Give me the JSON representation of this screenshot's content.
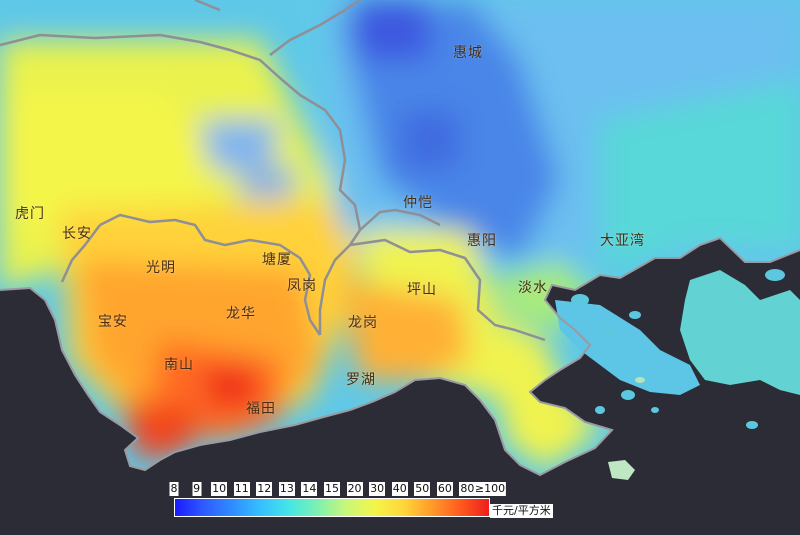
{
  "places": {
    "huicheng": "惠城",
    "humen": "虎门",
    "changan": "长安",
    "zhongkai": "仲恺",
    "huiyang": "惠阳",
    "dayawan": "大亚湾",
    "guangming": "光明",
    "tangxia": "塘厦",
    "fenggang": "凤岗",
    "pingshan": "坪山",
    "danshui": "淡水",
    "baoan": "宝安",
    "longhua": "龙华",
    "longgang": "龙岗",
    "nanshan": "南山",
    "luohu": "罗湖",
    "futian": "福田"
  },
  "legend": {
    "ticks": [
      "8",
      "9",
      "10",
      "11",
      "12",
      "13",
      "14",
      "15",
      "20",
      "30",
      "40",
      "50",
      "60",
      "80",
      "≥100"
    ],
    "colors": [
      "#1a1aff",
      "#2e5bff",
      "#2f8cff",
      "#35c0ff",
      "#44e6e6",
      "#7ff0b0",
      "#c8f77a",
      "#f4f54a",
      "#ffd63a",
      "#ff9b2a",
      "#ff5a1e",
      "#ee1e1e"
    ],
    "unit": "千元/平方米"
  },
  "colors": {
    "sea": "#2c2c36",
    "boundary": "#8f8f96"
  }
}
